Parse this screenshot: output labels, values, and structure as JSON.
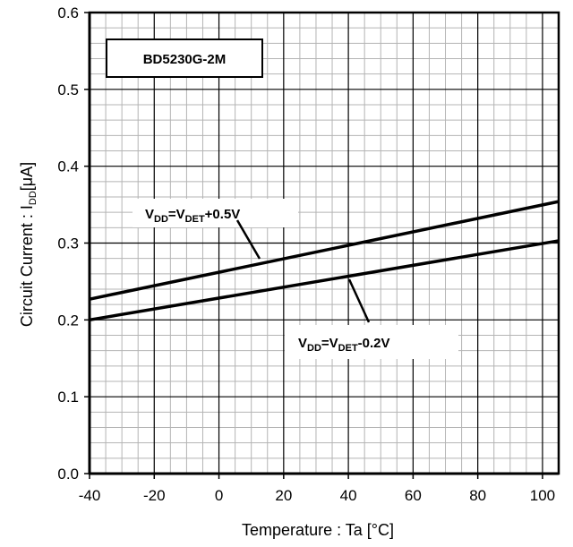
{
  "chart_data": {
    "type": "line",
    "title": "BD5230G-2M",
    "xlabel": "Temperature : Ta [°C]",
    "ylabel": {
      "prefix": "Circuit Current : I",
      "sub": "DD",
      "suffix": "[μA]"
    },
    "xlim": [
      -40,
      105
    ],
    "ylim": [
      0.0,
      0.6
    ],
    "x_ticks": [
      -40,
      -20,
      0,
      20,
      40,
      60,
      80,
      100
    ],
    "x_tick_labels": [
      "-40",
      "-20",
      "0",
      "20",
      "40",
      "60",
      "80",
      "100"
    ],
    "y_ticks": [
      0.0,
      0.1,
      0.2,
      0.3,
      0.4,
      0.5,
      0.6
    ],
    "y_tick_labels": [
      "0.0",
      "0.1",
      "0.2",
      "0.3",
      "0.4",
      "0.5",
      "0.6"
    ],
    "grid": true,
    "series": [
      {
        "label": {
          "v": "V",
          "sub1": "DD",
          "mid": "=V",
          "sub2": "DET",
          "tail": "+0.5V"
        },
        "x": [
          -40,
          105
        ],
        "y": [
          0.227,
          0.354
        ]
      },
      {
        "label": {
          "v": "V",
          "sub1": "DD",
          "mid": "=V",
          "sub2": "DET",
          "tail": "-0.2V"
        },
        "x": [
          -40,
          105
        ],
        "y": [
          0.2,
          0.303
        ]
      }
    ]
  }
}
